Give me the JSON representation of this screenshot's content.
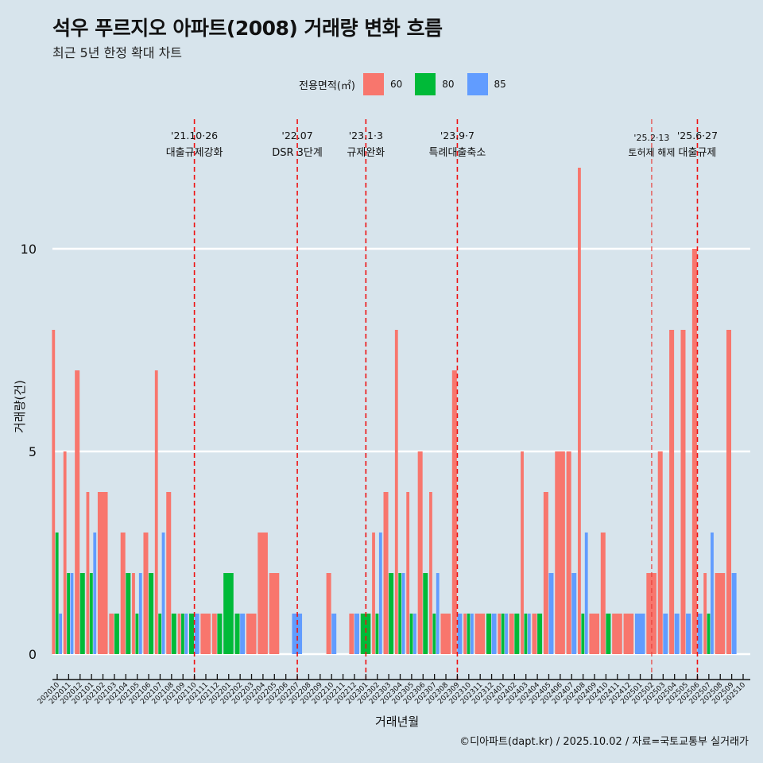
{
  "header": {
    "title": "석우 푸르지오 아파트(2008) 거래량 변화 흐름",
    "subtitle": "최근 5년 한정 확대 차트"
  },
  "legend": {
    "title": "전용면적(㎡)",
    "items": [
      {
        "label": "60",
        "color": "#f8766d"
      },
      {
        "label": "80",
        "color": "#00ba38"
      },
      {
        "label": "85",
        "color": "#619cff"
      }
    ]
  },
  "footer": "©디아파트(dapt.kr) / 2025.10.02 / 자료=국토교통부 실거래가",
  "chart_data": {
    "type": "bar",
    "title": "석우 푸르지오 아파트(2008) 거래량 변화 흐름",
    "xlabel": "거래년월",
    "ylabel": "거래량(건)",
    "ylim": [
      -0.5,
      12.3
    ],
    "yticks": [
      0,
      5,
      10
    ],
    "grid": "horizontal",
    "legend_position": "top",
    "categories": [
      "202010",
      "202011",
      "202012",
      "202101",
      "202102",
      "202103",
      "202104",
      "202105",
      "202106",
      "202107",
      "202108",
      "202109",
      "202110",
      "202111",
      "202112",
      "202201",
      "202202",
      "202203",
      "202204",
      "202205",
      "202206",
      "202207",
      "202208",
      "202209",
      "202210",
      "202211",
      "202212",
      "202301",
      "202302",
      "202303",
      "202304",
      "202305",
      "202306",
      "202307",
      "202308",
      "202309",
      "202310",
      "202311",
      "202312",
      "202401",
      "202402",
      "202403",
      "202404",
      "202405",
      "202406",
      "202407",
      "202408",
      "202409",
      "202410",
      "202411",
      "202412",
      "202501",
      "202502",
      "202503",
      "202504",
      "202505",
      "202506",
      "202507",
      "202508",
      "202509",
      "202510"
    ],
    "series": [
      {
        "name": "60",
        "color": "#f8766d",
        "values": [
          8,
          5,
          7,
          4,
          4,
          1,
          3,
          2,
          3,
          7,
          4,
          1,
          0,
          1,
          1,
          0,
          0,
          1,
          3,
          2,
          0,
          0,
          0,
          0,
          2,
          0,
          1,
          0,
          3,
          4,
          8,
          4,
          5,
          4,
          1,
          7,
          1,
          1,
          0,
          1,
          1,
          5,
          1,
          4,
          5,
          5,
          12,
          1,
          3,
          1,
          1,
          0,
          2,
          5,
          8,
          8,
          10,
          2,
          2,
          8,
          0
        ]
      },
      {
        "name": "80",
        "color": "#00ba38",
        "values": [
          3,
          2,
          2,
          2,
          0,
          1,
          2,
          1,
          2,
          1,
          1,
          1,
          1,
          0,
          1,
          2,
          1,
          0,
          0,
          0,
          0,
          0,
          0,
          0,
          0,
          0,
          0,
          1,
          1,
          2,
          2,
          1,
          2,
          1,
          0,
          0,
          1,
          0,
          1,
          1,
          1,
          1,
          1,
          0,
          0,
          0,
          1,
          0,
          1,
          0,
          0,
          0,
          0,
          0,
          0,
          0,
          0,
          1,
          0,
          0,
          0
        ]
      },
      {
        "name": "85",
        "color": "#619cff",
        "values": [
          1,
          2,
          0,
          3,
          0,
          0,
          0,
          2,
          0,
          3,
          0,
          1,
          1,
          0,
          0,
          0,
          1,
          0,
          0,
          0,
          0,
          1,
          0,
          0,
          1,
          0,
          1,
          0,
          3,
          0,
          2,
          1,
          0,
          2,
          0,
          1,
          1,
          0,
          1,
          1,
          0,
          1,
          0,
          2,
          0,
          2,
          3,
          0,
          0,
          0,
          0,
          1,
          0,
          1,
          1,
          1,
          1,
          3,
          0,
          2,
          0
        ]
      }
    ],
    "events": [
      {
        "date": "202110",
        "label_top": "'21.10·26",
        "label_bottom": "대출규제강화"
      },
      {
        "date": "202207",
        "label_top": "'22.07",
        "label_bottom": "DSR 3단계"
      },
      {
        "date": "202301",
        "label_top": "'23.1·3",
        "label_bottom": "규제완화"
      },
      {
        "date": "202309",
        "label_top": "'23.9·7",
        "label_bottom": "특례대출축소"
      },
      {
        "date": "202502",
        "label_top": "'25.2·13",
        "label_bottom": "토허제 해제"
      },
      {
        "date": "202506",
        "label_top": "'25.6·27",
        "label_bottom": "대출규제"
      }
    ]
  }
}
